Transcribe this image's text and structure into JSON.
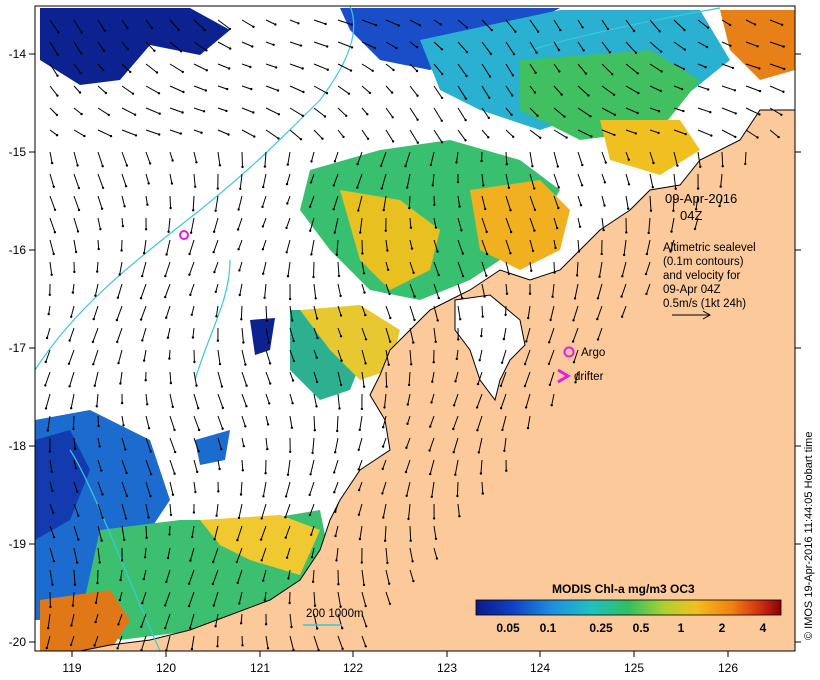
{
  "map": {
    "x_ticks": [
      "119",
      "120",
      "121",
      "122",
      "123",
      "124",
      "125",
      "126"
    ],
    "y_ticks": [
      "-14",
      "-15",
      "-16",
      "-17",
      "-18",
      "-19",
      "-20"
    ],
    "date_label": "09-Apr-2016",
    "time_label": "04Z",
    "info_lines": [
      "Altimetric sealevel",
      "(0.1m contours)",
      "and velocity for",
      "09-Apr 04Z",
      "0.5m/s (1kt 24h)"
    ],
    "legend": {
      "argo": "Argo",
      "drifter": "drifter"
    },
    "scale_label": "200  1000m",
    "colorbar_title": "MODIS Chl-a mg/m3 OC3",
    "colorbar_ticks": [
      "0.05",
      "0.1",
      "0.25",
      "0.5",
      "1",
      "2",
      "4"
    ],
    "credit": "© IMOS 19-Apr-2016 11:44:05 Hobart time",
    "colors": {
      "land": "#fcc99b",
      "contour": "#3cc8d8",
      "argo": "#e020e0",
      "chl_low": "#0a1a8a",
      "chl_mid": "#30c060",
      "chl_high": "#8b0000"
    }
  }
}
